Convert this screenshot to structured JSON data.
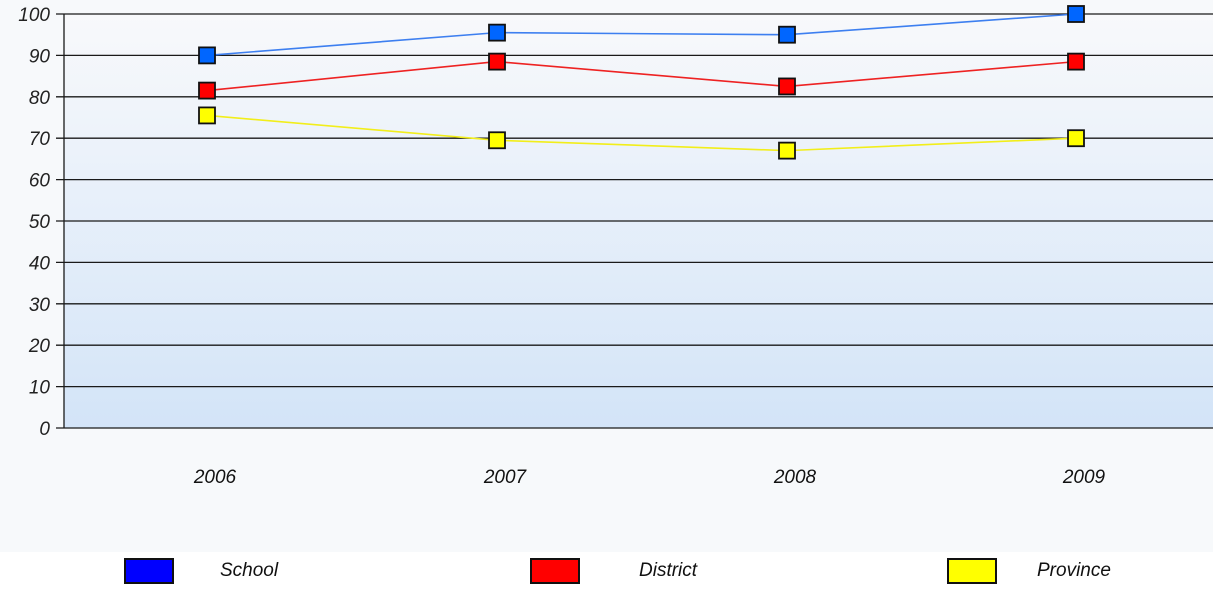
{
  "chart_data": {
    "type": "line",
    "categories": [
      "2006",
      "2007",
      "2008",
      "2009"
    ],
    "series": [
      {
        "name": "School",
        "values": [
          90,
          95.5,
          95,
          100
        ],
        "color": "#0066ff",
        "line_color": "#3d7ff0"
      },
      {
        "name": "District",
        "values": [
          81.5,
          88.5,
          82.5,
          88.5
        ],
        "color": "#ff0000",
        "line_color": "#ee2222"
      },
      {
        "name": "Province",
        "values": [
          75.5,
          69.5,
          67,
          70
        ],
        "color": "#ffff00",
        "line_color": "#f2ee1a"
      }
    ],
    "y_ticks": [
      "0",
      "10",
      "20",
      "30",
      "40",
      "50",
      "60",
      "70",
      "80",
      "90",
      "100"
    ],
    "ylim": [
      0,
      100
    ],
    "grid": true,
    "legend_position": "bottom",
    "plot_gradient": {
      "top": "#f8f9fb",
      "bottom": "#d3e4f8"
    }
  },
  "legend": {
    "items": [
      {
        "label": "School",
        "color": "#0000ff"
      },
      {
        "label": "District",
        "color": "#ff0000"
      },
      {
        "label": "Province",
        "color": "#ffff00"
      }
    ]
  }
}
